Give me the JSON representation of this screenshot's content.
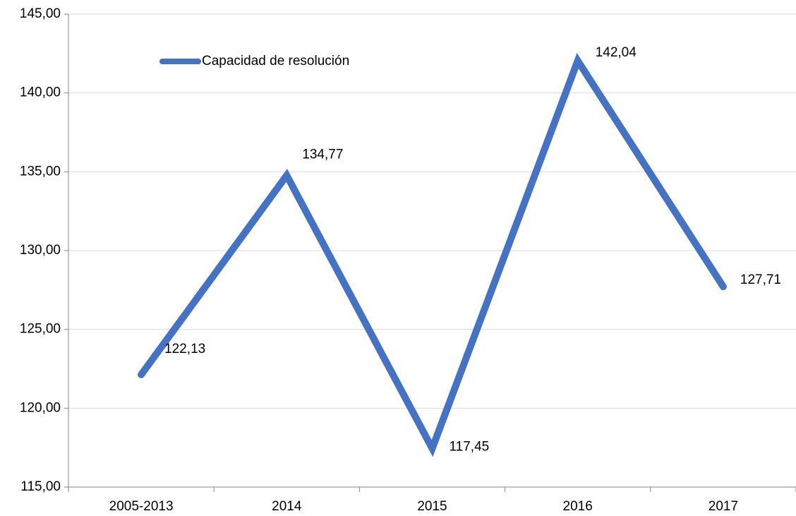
{
  "chart_data": {
    "type": "line",
    "categories": [
      "2005-2013",
      "2014",
      "2015",
      "2016",
      "2017"
    ],
    "series": [
      {
        "name": "Capacidad de resolución",
        "color": "#4472c4",
        "values": [
          122.13,
          134.77,
          117.45,
          142.04,
          127.71
        ],
        "value_labels": [
          "122,13",
          "134,77",
          "117,45",
          "142,04",
          "127,71"
        ]
      }
    ],
    "ylim": [
      115,
      145
    ],
    "yticks": [
      {
        "value": 115,
        "label": "115,00"
      },
      {
        "value": 120,
        "label": "120,00"
      },
      {
        "value": 125,
        "label": "125,00"
      },
      {
        "value": 130,
        "label": "130,00"
      },
      {
        "value": 135,
        "label": "135,00"
      },
      {
        "value": 140,
        "label": "140,00"
      },
      {
        "value": 145,
        "label": "145,00"
      }
    ],
    "grid": true,
    "legend": "top-left"
  }
}
